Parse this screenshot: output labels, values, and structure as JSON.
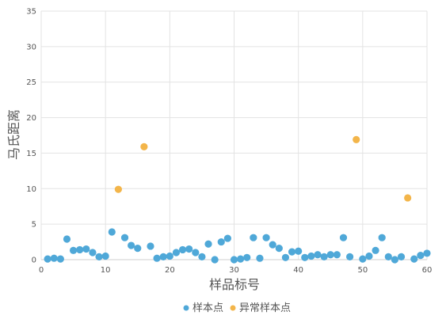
{
  "chart_data": {
    "type": "scatter",
    "xlabel": "样品标号",
    "ylabel": "马氏距离",
    "xlim": [
      0,
      60
    ],
    "ylim": [
      0,
      35
    ],
    "x_ticks": [
      0,
      10,
      20,
      30,
      40,
      50,
      60
    ],
    "y_ticks": [
      0,
      5,
      10,
      15,
      20,
      25,
      30,
      35
    ],
    "grid": true,
    "legend_position": "bottom",
    "series": [
      {
        "name": "样本点",
        "color": "#4fa8d8",
        "points": [
          [
            1,
            0.1
          ],
          [
            2,
            0.2
          ],
          [
            3,
            0.1
          ],
          [
            4,
            2.9
          ],
          [
            5,
            1.3
          ],
          [
            6,
            1.4
          ],
          [
            7,
            1.5
          ],
          [
            8,
            1.0
          ],
          [
            9,
            0.4
          ],
          [
            10,
            0.5
          ],
          [
            11,
            3.9
          ],
          [
            13,
            3.1
          ],
          [
            14,
            2.0
          ],
          [
            15,
            1.6
          ],
          [
            17,
            1.9
          ],
          [
            18,
            0.2
          ],
          [
            19,
            0.4
          ],
          [
            20,
            0.5
          ],
          [
            21,
            1.0
          ],
          [
            22,
            1.4
          ],
          [
            23,
            1.5
          ],
          [
            24,
            1.0
          ],
          [
            25,
            0.4
          ],
          [
            26,
            2.2
          ],
          [
            27,
            0.0
          ],
          [
            28,
            2.5
          ],
          [
            29,
            3.0
          ],
          [
            30,
            0.0
          ],
          [
            31,
            0.1
          ],
          [
            32,
            0.3
          ],
          [
            33,
            3.1
          ],
          [
            34,
            0.2
          ],
          [
            35,
            3.1
          ],
          [
            36,
            2.1
          ],
          [
            37,
            1.6
          ],
          [
            38,
            0.3
          ],
          [
            39,
            1.1
          ],
          [
            40,
            1.2
          ],
          [
            41,
            0.3
          ],
          [
            42,
            0.5
          ],
          [
            43,
            0.7
          ],
          [
            44,
            0.4
          ],
          [
            45,
            0.7
          ],
          [
            46,
            0.7
          ],
          [
            47,
            3.1
          ],
          [
            48,
            0.4
          ],
          [
            50,
            0.1
          ],
          [
            51,
            0.5
          ],
          [
            52,
            1.3
          ],
          [
            53,
            3.1
          ],
          [
            54,
            0.4
          ],
          [
            55,
            0.0
          ],
          [
            56,
            0.4
          ],
          [
            58,
            0.1
          ],
          [
            59,
            0.6
          ],
          [
            60,
            0.9
          ]
        ]
      },
      {
        "name": "异常样本点",
        "color": "#f3b54a",
        "points": [
          [
            12,
            9.9
          ],
          [
            16,
            15.9
          ],
          [
            49,
            16.9
          ],
          [
            57,
            8.7
          ]
        ]
      }
    ]
  }
}
